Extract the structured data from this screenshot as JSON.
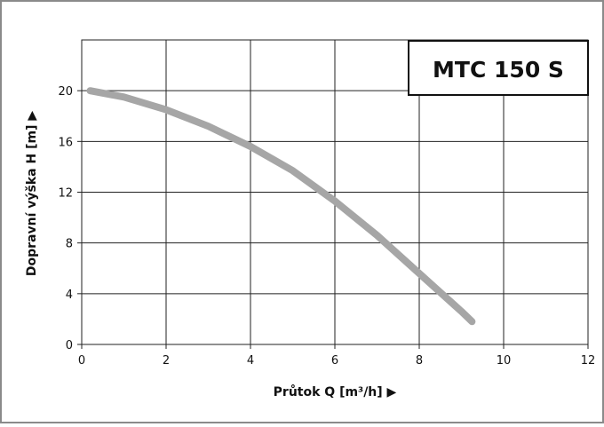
{
  "chart_data": {
    "type": "line",
    "title": "MTC 150 S",
    "xlabel": "Průtok Q [m³/h] ▶",
    "ylabel": "Dopravní výška H [m] ▶",
    "xlim": [
      0,
      12
    ],
    "ylim": [
      0,
      24
    ],
    "xticks": [
      "0",
      "2",
      "4",
      "6",
      "8",
      "10",
      "12"
    ],
    "yticks": [
      "0",
      "4",
      "8",
      "12",
      "16",
      "20"
    ],
    "grid": true,
    "series": [
      {
        "color": "#a6a6a6",
        "x": [
          0.2,
          1.0,
          2.0,
          3.0,
          4.0,
          5.0,
          6.0,
          7.0,
          8.0,
          9.0,
          9.25
        ],
        "y": [
          20.0,
          19.5,
          18.5,
          17.2,
          15.6,
          13.7,
          11.3,
          8.6,
          5.6,
          2.6,
          1.8
        ]
      }
    ]
  }
}
